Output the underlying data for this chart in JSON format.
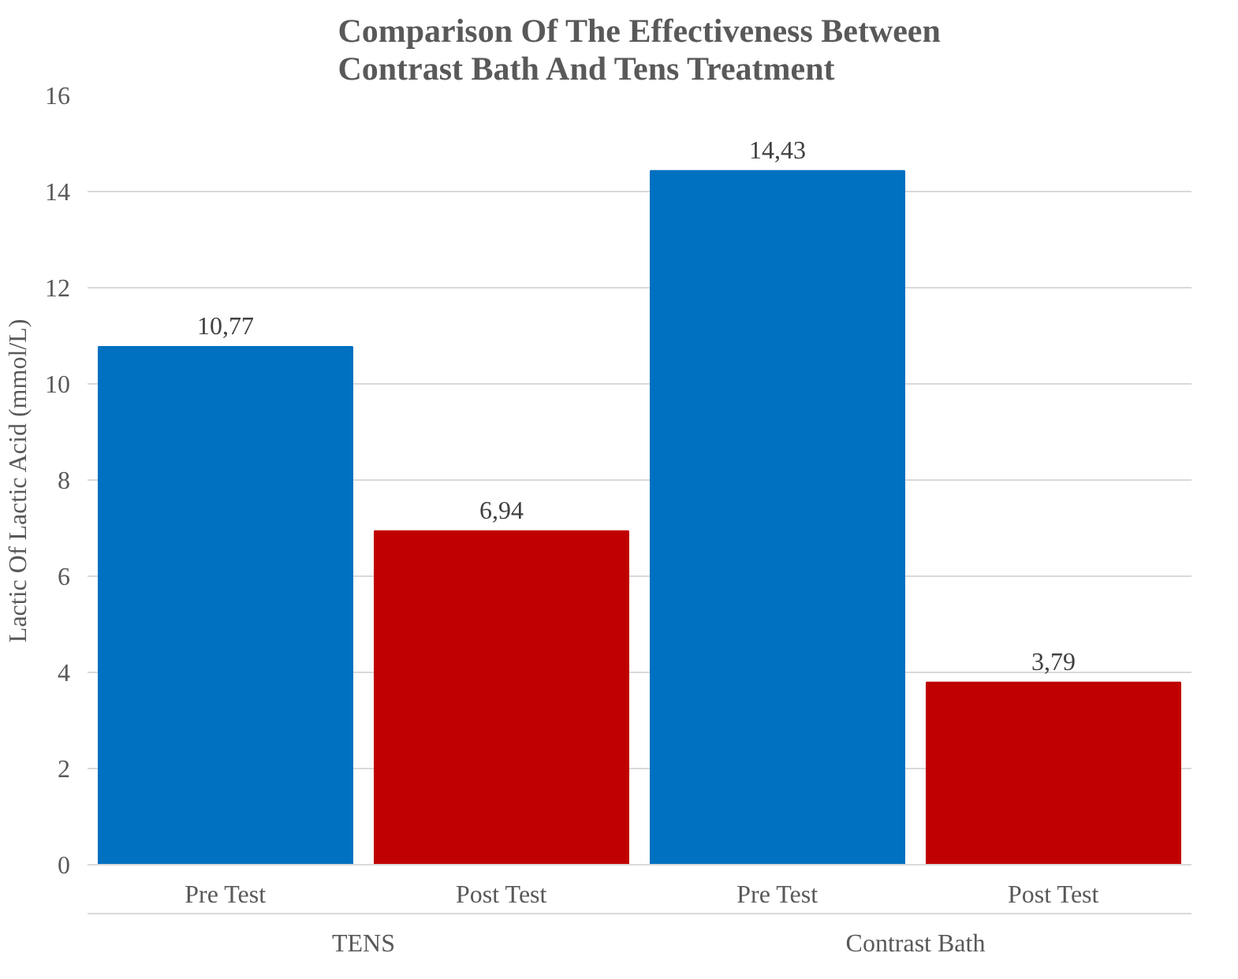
{
  "chart_data": {
    "type": "bar",
    "title": "Comparison Of The Effectiveness Between Contrast Bath And Tens Treatment",
    "ylabel": "Lactic Of Lactic Acid (mmol/L)",
    "categories": [
      "Pre Test",
      "Post Test",
      "Pre Test",
      "Post Test"
    ],
    "values": [
      10.77,
      6.94,
      14.43,
      3.79
    ],
    "colors": [
      "#0070c0",
      "#c00000",
      "#0070c0",
      "#c00000"
    ],
    "value_labels": [
      "10,77",
      "6,94",
      "14,43",
      "3,79"
    ],
    "annotations": [
      "TENS",
      "Contrast Bath"
    ],
    "ylim": [
      0,
      16
    ],
    "yticks": [
      0,
      2,
      4,
      6,
      8,
      10,
      12,
      14,
      16
    ],
    "grid": "y"
  }
}
